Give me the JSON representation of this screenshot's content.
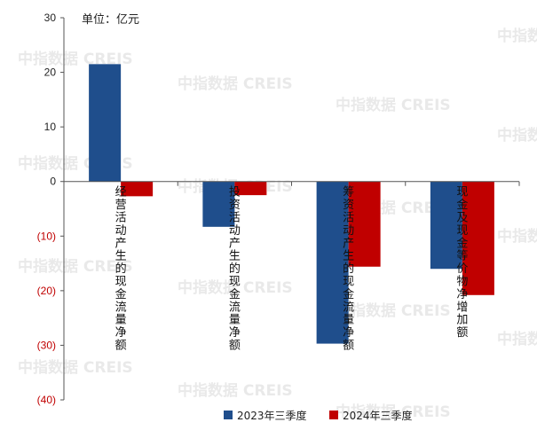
{
  "unit_label": "单位：亿元",
  "watermark_text": "中指数据 CREIS",
  "colors": {
    "series_2023": "#1f4e8c",
    "series_2024": "#c00000",
    "negative_tick": "#c00000",
    "positive_tick": "#222222",
    "axis": "#555555",
    "gridline": "#c8c8c8"
  },
  "chart_data": {
    "type": "bar",
    "title": "",
    "xlabel": "",
    "ylabel": "",
    "unit": "单位：亿元",
    "ylim": [
      -40,
      30
    ],
    "yticks": [
      30,
      20,
      10,
      0,
      -10,
      -20,
      -30,
      -40
    ],
    "ytick_labels": [
      "30",
      "20",
      "10",
      "0",
      "(10)",
      "(20)",
      "(30)",
      "(40)"
    ],
    "grid": false,
    "legend_position": "bottom",
    "categories": [
      "经营活动产生的现金流量净额",
      "投资活动产生的现金流量净额",
      "筹资活动产生的现金流量净额",
      "现金及现金等价物净增加额"
    ],
    "series": [
      {
        "name": "2023年三季度",
        "values": [
          21.5,
          -8.3,
          -29.7,
          -16.0
        ]
      },
      {
        "name": "2024年三季度",
        "values": [
          -2.7,
          -2.5,
          -15.6,
          -20.8
        ]
      }
    ]
  }
}
